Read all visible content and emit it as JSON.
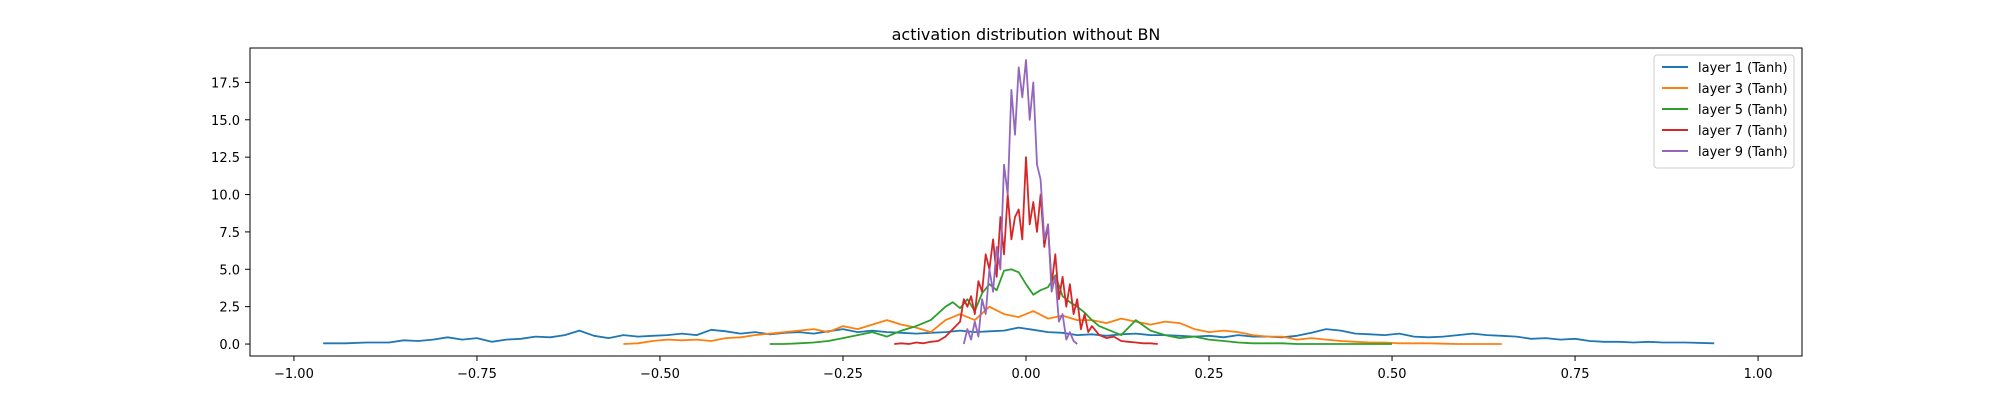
{
  "chart_data": {
    "type": "line",
    "title": "activation distribution without BN",
    "xlabel": "",
    "ylabel": "",
    "xlim": [
      -1.06,
      1.06
    ],
    "ylim": [
      -0.8,
      19.8
    ],
    "xticks": [
      -1.0,
      -0.75,
      -0.5,
      -0.25,
      0.0,
      0.25,
      0.5,
      0.75,
      1.0
    ],
    "xtick_labels": [
      "−1.00",
      "−0.75",
      "−0.50",
      "−0.25",
      "0.00",
      "0.25",
      "0.50",
      "0.75",
      "1.00"
    ],
    "yticks": [
      0.0,
      2.5,
      5.0,
      7.5,
      10.0,
      12.5,
      15.0,
      17.5
    ],
    "ytick_labels": [
      "0.0",
      "2.5",
      "5.0",
      "7.5",
      "10.0",
      "12.5",
      "15.0",
      "17.5"
    ],
    "grid": false,
    "legend_position": "top-right",
    "series": [
      {
        "name": "layer 1 (Tanh)",
        "color": "#1f77b4",
        "x": [
          -0.96,
          -0.93,
          -0.9,
          -0.87,
          -0.85,
          -0.83,
          -0.81,
          -0.79,
          -0.77,
          -0.75,
          -0.73,
          -0.71,
          -0.69,
          -0.67,
          -0.65,
          -0.63,
          -0.61,
          -0.59,
          -0.57,
          -0.55,
          -0.53,
          -0.51,
          -0.49,
          -0.47,
          -0.45,
          -0.43,
          -0.41,
          -0.39,
          -0.37,
          -0.35,
          -0.33,
          -0.31,
          -0.29,
          -0.27,
          -0.25,
          -0.23,
          -0.21,
          -0.19,
          -0.17,
          -0.15,
          -0.13,
          -0.11,
          -0.09,
          -0.07,
          -0.05,
          -0.03,
          -0.01,
          0.01,
          0.03,
          0.05,
          0.07,
          0.09,
          0.11,
          0.13,
          0.15,
          0.17,
          0.19,
          0.21,
          0.23,
          0.25,
          0.27,
          0.29,
          0.31,
          0.33,
          0.35,
          0.37,
          0.39,
          0.41,
          0.43,
          0.45,
          0.47,
          0.49,
          0.51,
          0.53,
          0.55,
          0.57,
          0.59,
          0.61,
          0.63,
          0.65,
          0.67,
          0.69,
          0.71,
          0.73,
          0.75,
          0.77,
          0.79,
          0.81,
          0.83,
          0.85,
          0.87,
          0.9,
          0.94
        ],
        "y": [
          0.05,
          0.05,
          0.1,
          0.1,
          0.25,
          0.2,
          0.3,
          0.45,
          0.3,
          0.4,
          0.15,
          0.3,
          0.35,
          0.5,
          0.45,
          0.6,
          0.9,
          0.55,
          0.4,
          0.6,
          0.5,
          0.55,
          0.6,
          0.7,
          0.6,
          0.95,
          0.85,
          0.7,
          0.8,
          0.65,
          0.75,
          0.8,
          0.7,
          0.85,
          1.0,
          0.8,
          0.9,
          0.8,
          0.75,
          0.7,
          0.75,
          0.8,
          0.9,
          0.8,
          0.85,
          0.9,
          1.1,
          0.95,
          0.8,
          0.75,
          0.6,
          0.65,
          0.55,
          0.65,
          0.7,
          0.6,
          0.6,
          0.55,
          0.5,
          0.55,
          0.45,
          0.6,
          0.5,
          0.5,
          0.45,
          0.55,
          0.75,
          1.0,
          0.9,
          0.7,
          0.65,
          0.6,
          0.7,
          0.5,
          0.45,
          0.5,
          0.6,
          0.7,
          0.6,
          0.55,
          0.5,
          0.35,
          0.4,
          0.3,
          0.35,
          0.2,
          0.15,
          0.15,
          0.1,
          0.15,
          0.1,
          0.1,
          0.05
        ]
      },
      {
        "name": "layer 3 (Tanh)",
        "color": "#ff7f0e",
        "x": [
          -0.55,
          -0.53,
          -0.51,
          -0.49,
          -0.47,
          -0.45,
          -0.43,
          -0.41,
          -0.39,
          -0.37,
          -0.35,
          -0.33,
          -0.31,
          -0.29,
          -0.27,
          -0.25,
          -0.23,
          -0.21,
          -0.19,
          -0.17,
          -0.15,
          -0.13,
          -0.11,
          -0.09,
          -0.07,
          -0.05,
          -0.03,
          -0.01,
          0.01,
          0.03,
          0.05,
          0.07,
          0.09,
          0.11,
          0.13,
          0.15,
          0.17,
          0.19,
          0.21,
          0.23,
          0.25,
          0.27,
          0.29,
          0.31,
          0.33,
          0.35,
          0.37,
          0.39,
          0.41,
          0.43,
          0.45,
          0.47,
          0.49,
          0.51,
          0.53,
          0.55,
          0.57,
          0.59,
          0.61,
          0.65
        ],
        "y": [
          0.0,
          0.05,
          0.2,
          0.3,
          0.25,
          0.3,
          0.2,
          0.4,
          0.45,
          0.6,
          0.7,
          0.8,
          0.9,
          1.0,
          0.8,
          1.2,
          1.0,
          1.3,
          1.6,
          1.3,
          1.1,
          0.8,
          1.6,
          2.0,
          1.6,
          2.5,
          2.0,
          1.8,
          2.2,
          1.7,
          1.9,
          1.6,
          1.6,
          1.4,
          1.7,
          1.5,
          1.3,
          1.5,
          1.4,
          1.0,
          0.8,
          0.9,
          0.8,
          0.6,
          0.5,
          0.5,
          0.3,
          0.4,
          0.3,
          0.2,
          0.15,
          0.1,
          0.1,
          0.05,
          0.05,
          0.05,
          0.02,
          0.0,
          0.0,
          0.0
        ]
      },
      {
        "name": "layer 5 (Tanh)",
        "color": "#2ca02c",
        "x": [
          -0.35,
          -0.33,
          -0.31,
          -0.29,
          -0.27,
          -0.25,
          -0.23,
          -0.21,
          -0.19,
          -0.17,
          -0.15,
          -0.13,
          -0.11,
          -0.1,
          -0.09,
          -0.08,
          -0.07,
          -0.06,
          -0.05,
          -0.04,
          -0.03,
          -0.02,
          -0.01,
          0.0,
          0.01,
          0.02,
          0.03,
          0.04,
          0.05,
          0.06,
          0.07,
          0.08,
          0.09,
          0.1,
          0.11,
          0.13,
          0.15,
          0.17,
          0.19,
          0.21,
          0.23,
          0.25,
          0.27,
          0.29,
          0.31,
          0.33,
          0.35,
          0.37,
          0.39,
          0.41,
          0.43,
          0.45,
          0.47,
          0.5
        ],
        "y": [
          0.0,
          0.0,
          0.05,
          0.1,
          0.2,
          0.4,
          0.6,
          0.8,
          0.5,
          0.9,
          1.2,
          1.6,
          2.5,
          2.8,
          2.4,
          3.0,
          2.2,
          3.4,
          4.0,
          3.6,
          4.9,
          5.0,
          4.8,
          4.0,
          3.3,
          3.6,
          3.8,
          4.6,
          3.2,
          2.8,
          2.5,
          2.1,
          1.6,
          1.2,
          1.0,
          0.6,
          1.6,
          0.9,
          0.6,
          0.4,
          0.5,
          0.3,
          0.2,
          0.1,
          0.05,
          0.05,
          0.05,
          0.0,
          0.0,
          0.0,
          0.0,
          0.0,
          0.0,
          0.0
        ]
      },
      {
        "name": "layer 7 (Tanh)",
        "color": "#d62728",
        "x": [
          -0.18,
          -0.17,
          -0.16,
          -0.15,
          -0.14,
          -0.13,
          -0.12,
          -0.11,
          -0.1,
          -0.09,
          -0.085,
          -0.08,
          -0.075,
          -0.07,
          -0.065,
          -0.06,
          -0.055,
          -0.05,
          -0.045,
          -0.04,
          -0.035,
          -0.03,
          -0.025,
          -0.02,
          -0.015,
          -0.01,
          -0.005,
          0.0,
          0.005,
          0.01,
          0.015,
          0.02,
          0.025,
          0.03,
          0.035,
          0.04,
          0.045,
          0.05,
          0.055,
          0.06,
          0.065,
          0.07,
          0.075,
          0.08,
          0.085,
          0.09,
          0.1,
          0.11,
          0.12,
          0.13,
          0.14,
          0.15,
          0.16,
          0.17,
          0.18
        ],
        "y": [
          0.0,
          0.05,
          0.0,
          0.1,
          0.05,
          0.15,
          0.2,
          0.5,
          1.0,
          1.5,
          3.0,
          2.5,
          3.2,
          2.0,
          4.2,
          3.5,
          6.0,
          5.0,
          7.0,
          4.5,
          8.5,
          6.0,
          10.0,
          7.0,
          8.5,
          9.0,
          7.0,
          12.5,
          8.0,
          9.5,
          7.5,
          10.0,
          6.5,
          8.0,
          4.0,
          6.0,
          3.0,
          4.5,
          2.5,
          4.0,
          2.0,
          3.0,
          1.0,
          2.0,
          0.8,
          1.2,
          0.6,
          0.4,
          0.5,
          0.2,
          0.15,
          0.1,
          0.05,
          0.05,
          0.0
        ]
      },
      {
        "name": "layer 9 (Tanh)",
        "color": "#9467bd",
        "x": [
          -0.085,
          -0.08,
          -0.075,
          -0.07,
          -0.065,
          -0.06,
          -0.055,
          -0.05,
          -0.045,
          -0.04,
          -0.035,
          -0.03,
          -0.025,
          -0.02,
          -0.015,
          -0.01,
          -0.005,
          0.0,
          0.005,
          0.01,
          0.015,
          0.02,
          0.025,
          0.03,
          0.035,
          0.04,
          0.045,
          0.05,
          0.055,
          0.06,
          0.065,
          0.07
        ],
        "y": [
          0.0,
          1.0,
          0.3,
          1.5,
          0.5,
          3.0,
          2.0,
          5.0,
          3.5,
          6.5,
          5.0,
          12.0,
          10.0,
          17.0,
          14.0,
          18.5,
          16.5,
          19.0,
          15.0,
          17.5,
          12.0,
          11.0,
          7.0,
          8.0,
          3.5,
          4.5,
          1.5,
          2.0,
          0.3,
          0.8,
          0.2,
          0.0
        ]
      }
    ]
  }
}
